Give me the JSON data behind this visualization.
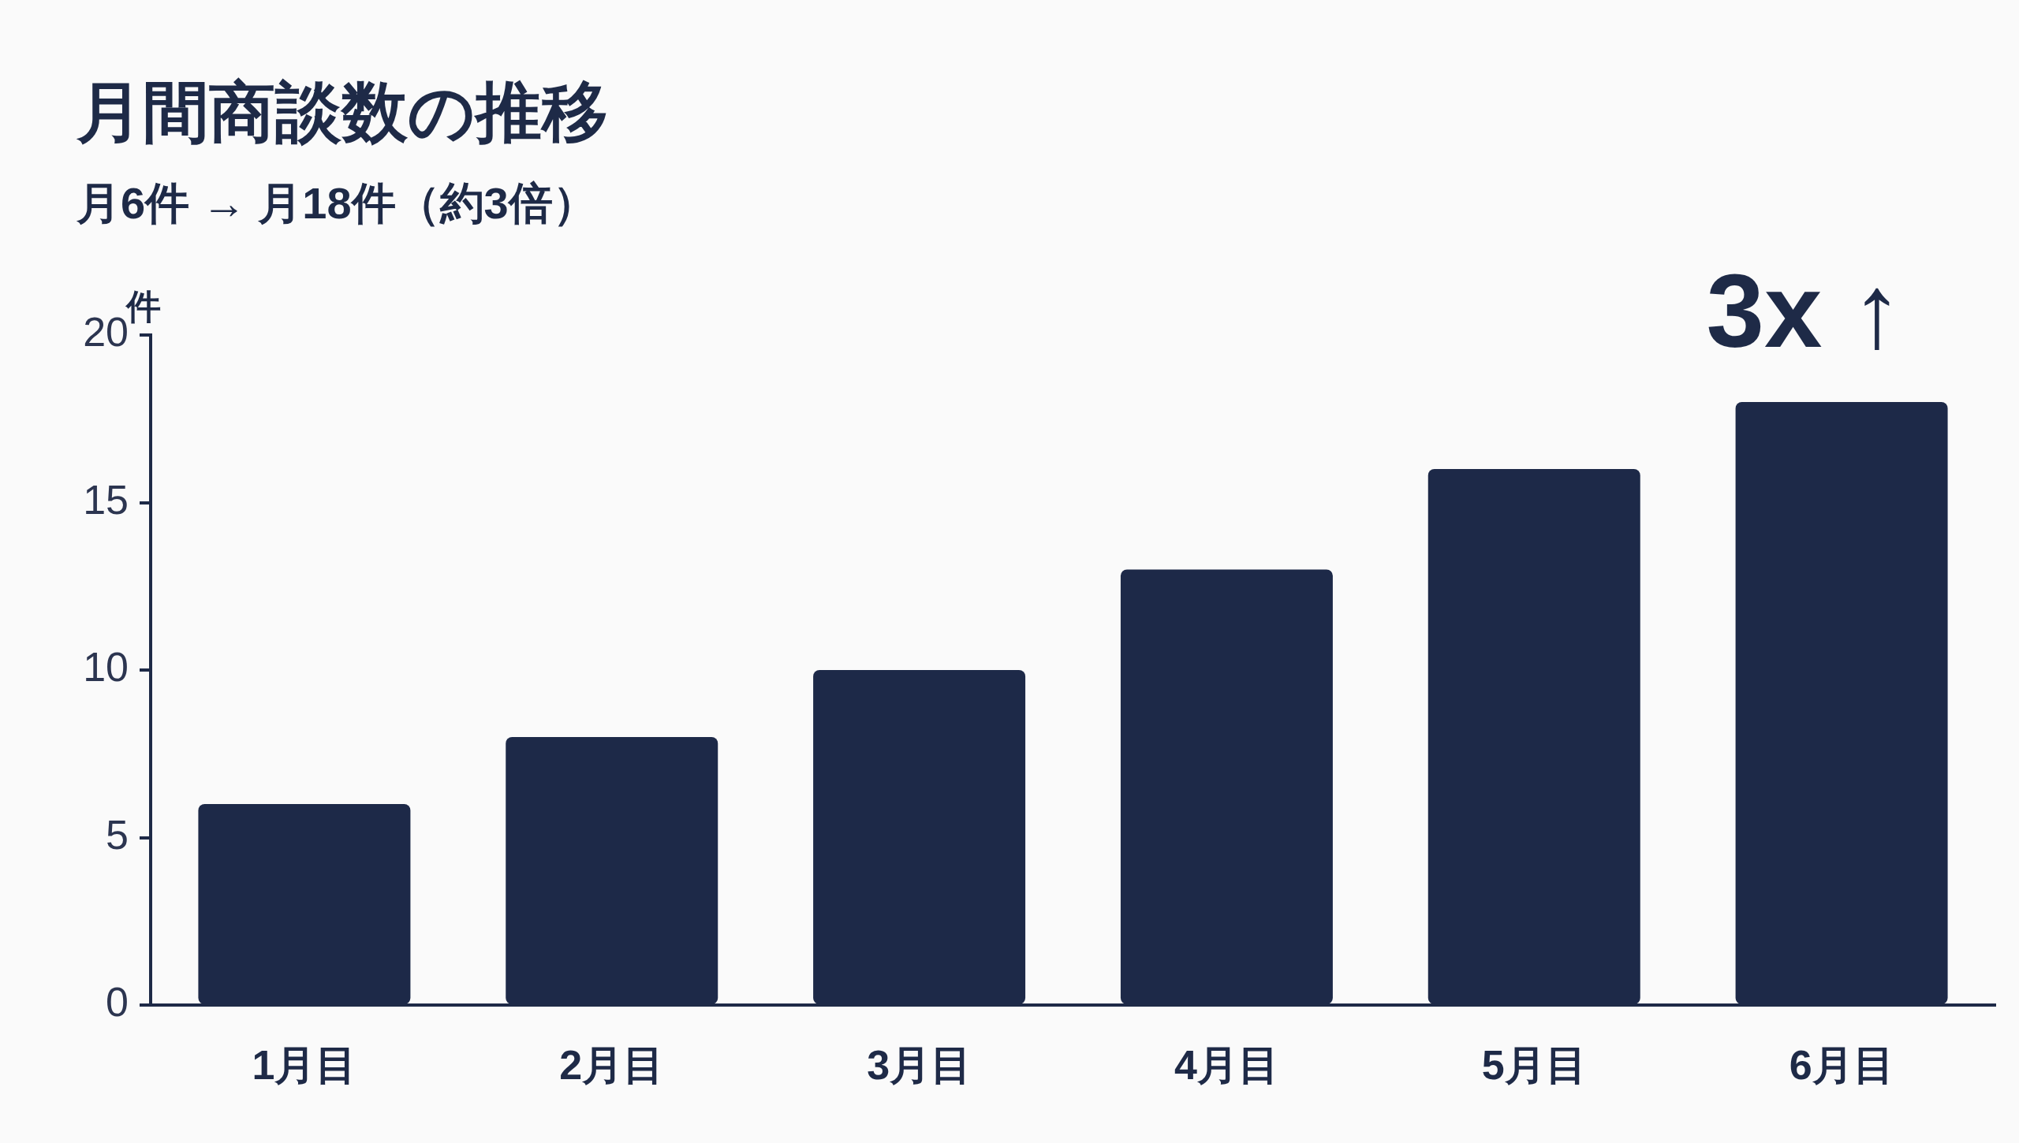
{
  "chart_data": {
    "type": "bar",
    "title": "月間商談数の推移",
    "subtitle": "月6件 → 月18件（約3倍）",
    "ylabel": "件",
    "categories": [
      "1月目",
      "2月目",
      "3月目",
      "4月目",
      "5月目",
      "6月目"
    ],
    "values": [
      6,
      8,
      10,
      13,
      16,
      18
    ],
    "color": "#1d2948",
    "ylim": [
      0,
      20
    ],
    "yticks": [
      0,
      5,
      10,
      15,
      20
    ],
    "annotations": [
      "3x ↑"
    ]
  }
}
